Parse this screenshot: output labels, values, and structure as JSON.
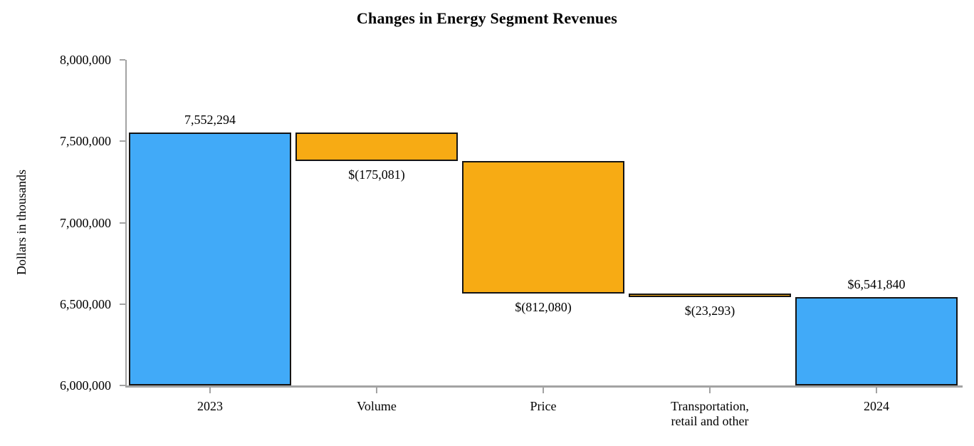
{
  "chart_data": {
    "type": "bar",
    "subtype": "waterfall",
    "title": "Changes in Energy Segment Revenues",
    "xlabel": "",
    "ylabel": "Dollars in thousands",
    "ylim": [
      6000000,
      8000000
    ],
    "grid": false,
    "legend": "none",
    "yticks": [
      {
        "value": 8000000,
        "label": "8,000,000"
      },
      {
        "value": 7500000,
        "label": "7,500,000"
      },
      {
        "value": 7000000,
        "label": "7,000,000"
      },
      {
        "value": 6500000,
        "label": "6,500,000"
      },
      {
        "value": 6000000,
        "label": "6,000,000"
      }
    ],
    "categories": [
      "2023",
      "Volume",
      "Price",
      "Transportation,\nretail and other",
      "2024"
    ],
    "bars": [
      {
        "category": "2023",
        "start": 6000000,
        "end": 7552294,
        "change": 1552294,
        "label": "7,552,294",
        "label_position": "above",
        "color": "total"
      },
      {
        "category": "Volume",
        "start": 7552294,
        "end": 7377213,
        "change": -175081,
        "label": "$(175,081)",
        "label_position": "below",
        "color": "decrease"
      },
      {
        "category": "Price",
        "start": 7377213,
        "end": 6565133,
        "change": -812080,
        "label": "$(812,080)",
        "label_position": "below",
        "color": "decrease"
      },
      {
        "category": "Transportation,\nretail and other",
        "start": 6565133,
        "end": 6541840,
        "change": -23293,
        "label": "$(23,293)",
        "label_position": "below",
        "color": "decrease"
      },
      {
        "category": "2024",
        "start": 6000000,
        "end": 6541840,
        "change": 541840,
        "label": "$6,541,840",
        "label_position": "above",
        "color": "total"
      }
    ],
    "colors": {
      "total": "#41aaf8",
      "decrease": "#f7ab14",
      "bar_border": "#141414",
      "axis": "#a3a3a3",
      "text": "#000000"
    }
  }
}
